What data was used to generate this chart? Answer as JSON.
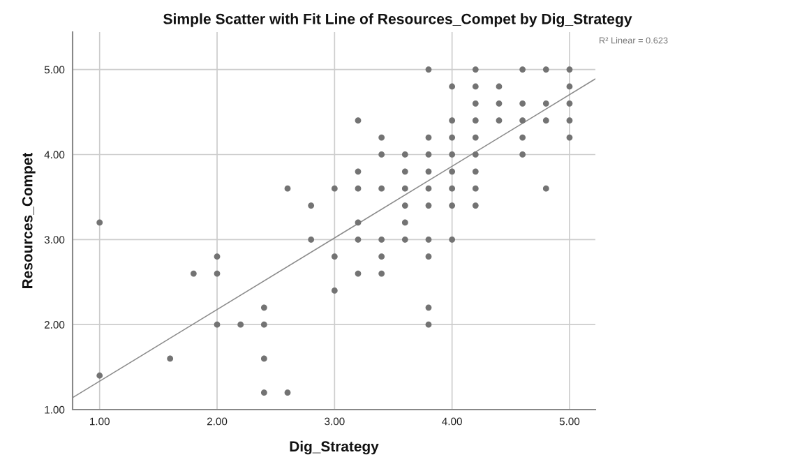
{
  "chart_data": {
    "type": "scatter",
    "title": "Simple Scatter with Fit Line of Resources_Compet by Dig_Strategy",
    "xlabel": "Dig_Strategy",
    "ylabel": "Resources_Compet",
    "annotations": [
      "R² Linear = 0.623"
    ],
    "series": [
      {
        "color": "#737373",
        "marker": "circle",
        "x": [
          1.0,
          1.0,
          1.6,
          1.8,
          2.0,
          2.0,
          2.0,
          2.2,
          2.4,
          2.4,
          2.4,
          2.4,
          2.6,
          2.6,
          2.8,
          2.8,
          3.0,
          3.0,
          3.0,
          3.2,
          3.2,
          3.2,
          3.2,
          3.2,
          3.2,
          3.4,
          3.4,
          3.4,
          3.4,
          3.4,
          3.4,
          3.6,
          3.6,
          3.6,
          3.6,
          3.6,
          3.6,
          3.8,
          3.8,
          3.8,
          3.8,
          3.8,
          3.8,
          3.8,
          3.8,
          3.8,
          3.8,
          4.0,
          4.0,
          4.0,
          4.0,
          4.0,
          4.0,
          4.0,
          4.0,
          4.2,
          4.2,
          4.2,
          4.2,
          4.2,
          4.2,
          4.2,
          4.2,
          4.2,
          4.4,
          4.4,
          4.4,
          4.6,
          4.6,
          4.6,
          4.6,
          4.6,
          4.8,
          4.8,
          4.8,
          4.8,
          5.0,
          5.0,
          5.0,
          5.0,
          5.0
        ],
        "values": [
          3.2,
          1.4,
          1.6,
          2.6,
          2.8,
          2.6,
          2.0,
          2.0,
          2.2,
          2.0,
          1.6,
          1.2,
          3.6,
          1.2,
          3.4,
          3.0,
          3.6,
          2.8,
          2.4,
          4.4,
          3.8,
          3.6,
          3.2,
          3.0,
          2.6,
          4.2,
          4.0,
          3.6,
          3.0,
          2.8,
          2.6,
          4.0,
          3.8,
          3.6,
          3.4,
          3.2,
          3.0,
          5.0,
          4.2,
          4.0,
          3.8,
          3.6,
          3.4,
          3.0,
          2.8,
          2.2,
          2.0,
          4.8,
          4.4,
          4.2,
          4.0,
          3.8,
          3.6,
          3.4,
          3.0,
          5.0,
          4.8,
          4.6,
          4.4,
          4.2,
          4.0,
          3.8,
          3.6,
          3.4,
          4.8,
          4.6,
          4.4,
          5.0,
          4.6,
          4.4,
          4.2,
          4.0,
          5.0,
          4.6,
          4.4,
          3.6,
          5.0,
          4.8,
          4.6,
          4.4,
          4.2
        ]
      },
      {
        "type": "line",
        "color": "#8c8c8c",
        "line_style": "solid",
        "x": [
          0.77,
          5.22
        ],
        "values": [
          1.14,
          4.89
        ]
      }
    ],
    "xlim": [
      0.77,
      5.22
    ],
    "ylim": [
      1.0,
      5.44
    ],
    "xticks": [
      {
        "value": 1,
        "label": "1.00"
      },
      {
        "value": 2,
        "label": "2.00"
      },
      {
        "value": 3,
        "label": "3.00"
      },
      {
        "value": 4,
        "label": "4.00"
      },
      {
        "value": 5,
        "label": "5.00"
      }
    ],
    "yticks": [
      {
        "value": 1,
        "label": "1.00"
      },
      {
        "value": 2,
        "label": "2.00"
      },
      {
        "value": 3,
        "label": "3.00"
      },
      {
        "value": 4,
        "label": "4.00"
      },
      {
        "value": 5,
        "label": "5.00"
      }
    ],
    "grid": true
  }
}
